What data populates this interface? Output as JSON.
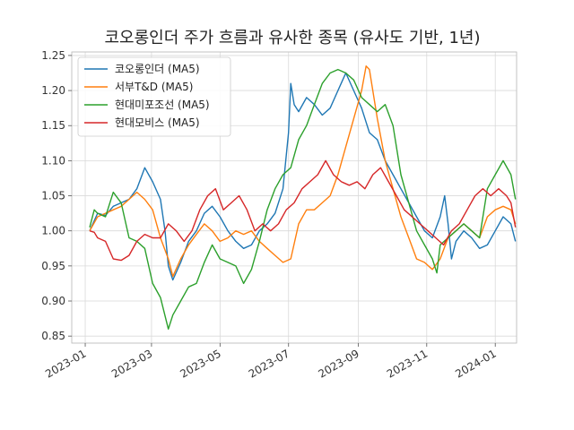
{
  "chart_data": {
    "type": "line",
    "title": "코오롱인더 주가 흐름과 유사한 종목 (유사도 기반, 1년)",
    "xlabel": "",
    "ylabel": "",
    "ylim": [
      0.84,
      1.255
    ],
    "xlim": [
      "2022-12-20",
      "2024-01-20"
    ],
    "grid": true,
    "legend": "top-left",
    "x_ticks": [
      "2023-01",
      "2023-03",
      "2023-05",
      "2023-07",
      "2023-09",
      "2023-11",
      "2024-01"
    ],
    "y_ticks": [
      "0.85",
      "0.90",
      "0.95",
      "1.00",
      "1.05",
      "1.10",
      "1.15",
      "1.20",
      "1.25"
    ],
    "series": [
      {
        "name": "코오롱인더 (MA5)",
        "color": "#1f77b4",
        "points": [
          [
            "2023-01-05",
            1.0
          ],
          [
            "2023-01-12",
            1.025
          ],
          [
            "2023-01-19",
            1.022
          ],
          [
            "2023-01-26",
            1.035
          ],
          [
            "2023-02-02",
            1.04
          ],
          [
            "2023-02-09",
            1.045
          ],
          [
            "2023-02-16",
            1.06
          ],
          [
            "2023-02-23",
            1.09
          ],
          [
            "2023-03-02",
            1.07
          ],
          [
            "2023-03-09",
            1.045
          ],
          [
            "2023-03-13",
            1.0
          ],
          [
            "2023-03-16",
            0.95
          ],
          [
            "2023-03-20",
            0.93
          ],
          [
            "2023-03-27",
            0.955
          ],
          [
            "2023-04-03",
            0.985
          ],
          [
            "2023-04-10",
            1.0
          ],
          [
            "2023-04-17",
            1.025
          ],
          [
            "2023-04-24",
            1.035
          ],
          [
            "2023-05-01",
            1.02
          ],
          [
            "2023-05-08",
            1.0
          ],
          [
            "2023-05-15",
            0.985
          ],
          [
            "2023-05-22",
            0.975
          ],
          [
            "2023-05-29",
            0.98
          ],
          [
            "2023-06-05",
            1.0
          ],
          [
            "2023-06-12",
            1.01
          ],
          [
            "2023-06-19",
            1.025
          ],
          [
            "2023-06-26",
            1.06
          ],
          [
            "2023-07-01",
            1.14
          ],
          [
            "2023-07-03",
            1.21
          ],
          [
            "2023-07-06",
            1.18
          ],
          [
            "2023-07-10",
            1.17
          ],
          [
            "2023-07-17",
            1.19
          ],
          [
            "2023-07-24",
            1.18
          ],
          [
            "2023-07-31",
            1.165
          ],
          [
            "2023-08-07",
            1.175
          ],
          [
            "2023-08-14",
            1.2
          ],
          [
            "2023-08-21",
            1.225
          ],
          [
            "2023-08-28",
            1.2
          ],
          [
            "2023-09-04",
            1.175
          ],
          [
            "2023-09-11",
            1.14
          ],
          [
            "2023-09-18",
            1.13
          ],
          [
            "2023-09-25",
            1.1
          ],
          [
            "2023-10-02",
            1.08
          ],
          [
            "2023-10-09",
            1.06
          ],
          [
            "2023-10-16",
            1.04
          ],
          [
            "2023-10-23",
            1.02
          ],
          [
            "2023-10-30",
            1.0
          ],
          [
            "2023-11-06",
            0.99
          ],
          [
            "2023-11-13",
            1.02
          ],
          [
            "2023-11-17",
            1.05
          ],
          [
            "2023-11-20",
            1.01
          ],
          [
            "2023-11-23",
            0.96
          ],
          [
            "2023-11-27",
            0.985
          ],
          [
            "2023-12-04",
            1.0
          ],
          [
            "2023-12-11",
            0.99
          ],
          [
            "2023-12-18",
            0.975
          ],
          [
            "2023-12-25",
            0.98
          ],
          [
            "2024-01-01",
            1.0
          ],
          [
            "2024-01-08",
            1.02
          ],
          [
            "2024-01-15",
            1.01
          ],
          [
            "2024-01-19",
            0.985
          ]
        ]
      },
      {
        "name": "서부T&D (MA5)",
        "color": "#ff7f0e",
        "points": [
          [
            "2023-01-05",
            1.0
          ],
          [
            "2023-01-12",
            1.02
          ],
          [
            "2023-01-19",
            1.025
          ],
          [
            "2023-01-26",
            1.03
          ],
          [
            "2023-02-02",
            1.035
          ],
          [
            "2023-02-09",
            1.045
          ],
          [
            "2023-02-16",
            1.055
          ],
          [
            "2023-02-23",
            1.045
          ],
          [
            "2023-03-02",
            1.03
          ],
          [
            "2023-03-09",
            0.99
          ],
          [
            "2023-03-16",
            0.96
          ],
          [
            "2023-03-20",
            0.935
          ],
          [
            "2023-03-27",
            0.96
          ],
          [
            "2023-04-03",
            0.98
          ],
          [
            "2023-04-10",
            0.995
          ],
          [
            "2023-04-17",
            1.01
          ],
          [
            "2023-04-24",
            1.0
          ],
          [
            "2023-05-01",
            0.985
          ],
          [
            "2023-05-08",
            0.99
          ],
          [
            "2023-05-15",
            1.0
          ],
          [
            "2023-05-22",
            0.995
          ],
          [
            "2023-05-29",
            1.0
          ],
          [
            "2023-06-05",
            0.985
          ],
          [
            "2023-06-12",
            0.975
          ],
          [
            "2023-06-19",
            0.965
          ],
          [
            "2023-06-26",
            0.955
          ],
          [
            "2023-07-03",
            0.96
          ],
          [
            "2023-07-10",
            1.01
          ],
          [
            "2023-07-17",
            1.03
          ],
          [
            "2023-07-24",
            1.03
          ],
          [
            "2023-07-31",
            1.04
          ],
          [
            "2023-08-07",
            1.05
          ],
          [
            "2023-08-14",
            1.08
          ],
          [
            "2023-08-21",
            1.12
          ],
          [
            "2023-08-28",
            1.16
          ],
          [
            "2023-09-04",
            1.2
          ],
          [
            "2023-09-08",
            1.235
          ],
          [
            "2023-09-11",
            1.23
          ],
          [
            "2023-09-18",
            1.16
          ],
          [
            "2023-09-25",
            1.1
          ],
          [
            "2023-10-02",
            1.06
          ],
          [
            "2023-10-09",
            1.02
          ],
          [
            "2023-10-16",
            0.99
          ],
          [
            "2023-10-23",
            0.96
          ],
          [
            "2023-10-30",
            0.955
          ],
          [
            "2023-11-06",
            0.945
          ],
          [
            "2023-11-13",
            0.96
          ],
          [
            "2023-11-20",
            0.99
          ],
          [
            "2023-11-27",
            1.0
          ],
          [
            "2023-12-04",
            1.01
          ],
          [
            "2023-12-11",
            1.0
          ],
          [
            "2023-12-18",
            0.99
          ],
          [
            "2023-12-25",
            1.02
          ],
          [
            "2024-01-01",
            1.03
          ],
          [
            "2024-01-08",
            1.035
          ],
          [
            "2024-01-15",
            1.03
          ],
          [
            "2024-01-19",
            1.01
          ]
        ]
      },
      {
        "name": "현대미포조선 (MA5)",
        "color": "#2ca02c",
        "points": [
          [
            "2023-01-05",
            1.005
          ],
          [
            "2023-01-09",
            1.03
          ],
          [
            "2023-01-12",
            1.025
          ],
          [
            "2023-01-19",
            1.02
          ],
          [
            "2023-01-26",
            1.055
          ],
          [
            "2023-02-02",
            1.04
          ],
          [
            "2023-02-09",
            0.99
          ],
          [
            "2023-02-16",
            0.985
          ],
          [
            "2023-02-23",
            0.975
          ],
          [
            "2023-03-02",
            0.925
          ],
          [
            "2023-03-09",
            0.905
          ],
          [
            "2023-03-16",
            0.86
          ],
          [
            "2023-03-20",
            0.88
          ],
          [
            "2023-03-27",
            0.9
          ],
          [
            "2023-04-03",
            0.92
          ],
          [
            "2023-04-10",
            0.925
          ],
          [
            "2023-04-17",
            0.955
          ],
          [
            "2023-04-24",
            0.98
          ],
          [
            "2023-05-01",
            0.96
          ],
          [
            "2023-05-08",
            0.955
          ],
          [
            "2023-05-15",
            0.95
          ],
          [
            "2023-05-22",
            0.925
          ],
          [
            "2023-05-29",
            0.945
          ],
          [
            "2023-06-05",
            0.985
          ],
          [
            "2023-06-12",
            1.03
          ],
          [
            "2023-06-19",
            1.06
          ],
          [
            "2023-06-26",
            1.08
          ],
          [
            "2023-07-03",
            1.09
          ],
          [
            "2023-07-10",
            1.13
          ],
          [
            "2023-07-17",
            1.15
          ],
          [
            "2023-07-24",
            1.18
          ],
          [
            "2023-07-31",
            1.21
          ],
          [
            "2023-08-07",
            1.225
          ],
          [
            "2023-08-14",
            1.23
          ],
          [
            "2023-08-21",
            1.225
          ],
          [
            "2023-08-28",
            1.215
          ],
          [
            "2023-09-04",
            1.19
          ],
          [
            "2023-09-11",
            1.18
          ],
          [
            "2023-09-18",
            1.17
          ],
          [
            "2023-09-25",
            1.18
          ],
          [
            "2023-10-02",
            1.15
          ],
          [
            "2023-10-09",
            1.08
          ],
          [
            "2023-10-16",
            1.04
          ],
          [
            "2023-10-23",
            1.0
          ],
          [
            "2023-10-30",
            0.98
          ],
          [
            "2023-11-06",
            0.96
          ],
          [
            "2023-11-10",
            0.94
          ],
          [
            "2023-11-13",
            0.98
          ],
          [
            "2023-11-20",
            0.99
          ],
          [
            "2023-11-27",
            1.0
          ],
          [
            "2023-12-04",
            1.01
          ],
          [
            "2023-12-11",
            1.0
          ],
          [
            "2023-12-18",
            0.99
          ],
          [
            "2023-12-25",
            1.06
          ],
          [
            "2024-01-01",
            1.08
          ],
          [
            "2024-01-08",
            1.1
          ],
          [
            "2024-01-15",
            1.08
          ],
          [
            "2024-01-19",
            1.045
          ]
        ]
      },
      {
        "name": "현대모비스 (MA5)",
        "color": "#d62728",
        "points": [
          [
            "2023-01-05",
            1.0
          ],
          [
            "2023-01-09",
            0.998
          ],
          [
            "2023-01-12",
            0.99
          ],
          [
            "2023-01-19",
            0.985
          ],
          [
            "2023-01-26",
            0.96
          ],
          [
            "2023-02-02",
            0.958
          ],
          [
            "2023-02-09",
            0.965
          ],
          [
            "2023-02-16",
            0.985
          ],
          [
            "2023-02-23",
            0.995
          ],
          [
            "2023-03-02",
            0.99
          ],
          [
            "2023-03-09",
            0.99
          ],
          [
            "2023-03-16",
            1.01
          ],
          [
            "2023-03-23",
            1.0
          ],
          [
            "2023-03-30",
            0.985
          ],
          [
            "2023-04-06",
            1.0
          ],
          [
            "2023-04-13",
            1.03
          ],
          [
            "2023-04-20",
            1.05
          ],
          [
            "2023-04-27",
            1.06
          ],
          [
            "2023-05-04",
            1.03
          ],
          [
            "2023-05-11",
            1.04
          ],
          [
            "2023-05-18",
            1.05
          ],
          [
            "2023-05-25",
            1.03
          ],
          [
            "2023-06-01",
            1.0
          ],
          [
            "2023-06-08",
            1.01
          ],
          [
            "2023-06-15",
            1.0
          ],
          [
            "2023-06-22",
            1.01
          ],
          [
            "2023-06-29",
            1.03
          ],
          [
            "2023-07-06",
            1.04
          ],
          [
            "2023-07-13",
            1.06
          ],
          [
            "2023-07-20",
            1.07
          ],
          [
            "2023-07-27",
            1.08
          ],
          [
            "2023-08-03",
            1.1
          ],
          [
            "2023-08-10",
            1.08
          ],
          [
            "2023-08-17",
            1.07
          ],
          [
            "2023-08-24",
            1.065
          ],
          [
            "2023-08-31",
            1.07
          ],
          [
            "2023-09-07",
            1.06
          ],
          [
            "2023-09-14",
            1.08
          ],
          [
            "2023-09-21",
            1.09
          ],
          [
            "2023-09-28",
            1.07
          ],
          [
            "2023-10-05",
            1.05
          ],
          [
            "2023-10-12",
            1.03
          ],
          [
            "2023-10-19",
            1.02
          ],
          [
            "2023-10-26",
            1.01
          ],
          [
            "2023-11-02",
            1.0
          ],
          [
            "2023-11-09",
            0.99
          ],
          [
            "2023-11-16",
            0.98
          ],
          [
            "2023-11-23",
            1.0
          ],
          [
            "2023-11-30",
            1.01
          ],
          [
            "2023-12-07",
            1.03
          ],
          [
            "2023-12-14",
            1.05
          ],
          [
            "2023-12-21",
            1.06
          ],
          [
            "2023-12-28",
            1.05
          ],
          [
            "2024-01-04",
            1.06
          ],
          [
            "2024-01-11",
            1.05
          ],
          [
            "2024-01-15",
            1.04
          ],
          [
            "2024-01-19",
            1.005
          ]
        ]
      }
    ]
  }
}
